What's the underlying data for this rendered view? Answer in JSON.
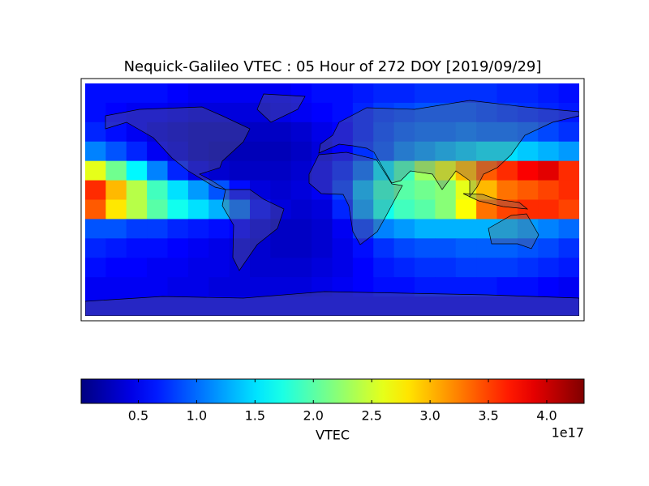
{
  "chart_data": {
    "type": "heatmap",
    "title": "Nequick-Galileo VTEC : 05 Hour of 272 DOY [2019/09/29]",
    "colorbar_label": "VTEC",
    "colorbar_offset": "1e17",
    "colormap": "jet",
    "clim": [
      0.01,
      4.32
    ],
    "cticks": [
      0.5,
      {
        "value": 1,
        "label": "1.0"
      },
      1.5,
      {
        "value": 2,
        "label": "2.0"
      },
      2.5,
      {
        "value": 3,
        "label": "3.0"
      },
      3.5,
      {
        "value": 4,
        "label": "4.0"
      }
    ],
    "values": [
      [
        0.6,
        0.6,
        0.6,
        0.6,
        0.55,
        0.5,
        0.5,
        0.5,
        0.5,
        0.5,
        0.55,
        0.6,
        0.6,
        0.65,
        0.7,
        0.7,
        0.75,
        0.75,
        0.75,
        0.75,
        0.7,
        0.7,
        0.65,
        0.6
      ],
      [
        0.6,
        0.55,
        0.5,
        0.5,
        0.45,
        0.4,
        0.4,
        0.4,
        0.4,
        0.45,
        0.5,
        0.55,
        0.6,
        0.7,
        0.8,
        0.85,
        0.9,
        0.9,
        0.9,
        0.85,
        0.8,
        0.75,
        0.7,
        0.65
      ],
      [
        0.7,
        0.6,
        0.5,
        0.4,
        0.35,
        0.3,
        0.3,
        0.3,
        0.3,
        0.3,
        0.35,
        0.45,
        0.55,
        0.7,
        0.85,
        0.95,
        1.0,
        1.0,
        1.05,
        1.0,
        1.0,
        0.95,
        0.85,
        0.75
      ],
      [
        1.1,
        0.9,
        0.7,
        0.5,
        0.4,
        0.3,
        0.25,
        0.25,
        0.25,
        0.25,
        0.3,
        0.4,
        0.55,
        0.75,
        0.9,
        1.1,
        1.2,
        1.3,
        1.4,
        1.5,
        1.5,
        1.4,
        1.3,
        1.2
      ],
      [
        2.6,
        2.1,
        1.6,
        1.1,
        0.7,
        0.45,
        0.35,
        0.3,
        0.3,
        0.3,
        0.35,
        0.5,
        0.7,
        1.0,
        1.5,
        1.9,
        2.3,
        2.6,
        3.0,
        3.4,
        3.6,
        3.8,
        3.9,
        3.6
      ],
      [
        3.6,
        3.0,
        2.4,
        1.9,
        1.5,
        1.2,
        0.9,
        0.6,
        0.4,
        0.35,
        0.4,
        0.5,
        0.8,
        1.3,
        1.8,
        2.0,
        2.1,
        2.2,
        2.6,
        3.0,
        3.3,
        3.4,
        3.5,
        3.6
      ],
      [
        3.4,
        2.8,
        2.4,
        2.0,
        1.7,
        1.5,
        1.3,
        1.0,
        0.6,
        0.4,
        0.35,
        0.4,
        0.7,
        1.2,
        1.7,
        1.9,
        2.0,
        2.2,
        2.7,
        3.3,
        3.5,
        3.6,
        3.6,
        3.5
      ],
      [
        0.9,
        0.9,
        0.8,
        0.8,
        0.7,
        0.65,
        0.6,
        0.55,
        0.4,
        0.3,
        0.3,
        0.35,
        0.5,
        0.8,
        1.1,
        1.2,
        1.3,
        1.3,
        1.3,
        1.3,
        1.3,
        1.2,
        1.1,
        1.0
      ],
      [
        0.7,
        0.65,
        0.6,
        0.6,
        0.55,
        0.5,
        0.45,
        0.4,
        0.35,
        0.3,
        0.3,
        0.35,
        0.45,
        0.6,
        0.75,
        0.85,
        0.9,
        0.9,
        0.95,
        0.95,
        0.95,
        0.9,
        0.85,
        0.75
      ],
      [
        0.6,
        0.55,
        0.55,
        0.5,
        0.5,
        0.45,
        0.45,
        0.4,
        0.35,
        0.35,
        0.35,
        0.4,
        0.45,
        0.55,
        0.65,
        0.7,
        0.75,
        0.75,
        0.8,
        0.8,
        0.8,
        0.75,
        0.7,
        0.65
      ],
      [
        0.5,
        0.5,
        0.5,
        0.5,
        0.45,
        0.45,
        0.4,
        0.4,
        0.4,
        0.4,
        0.4,
        0.45,
        0.5,
        0.55,
        0.6,
        0.6,
        0.65,
        0.65,
        0.65,
        0.65,
        0.6,
        0.6,
        0.55,
        0.5
      ],
      [
        0.5,
        0.5,
        0.5,
        0.5,
        0.5,
        0.5,
        0.5,
        0.5,
        0.5,
        0.5,
        0.5,
        0.5,
        0.5,
        0.5,
        0.5,
        0.5,
        0.5,
        0.5,
        0.5,
        0.5,
        0.5,
        0.5,
        0.5,
        0.5
      ]
    ]
  }
}
